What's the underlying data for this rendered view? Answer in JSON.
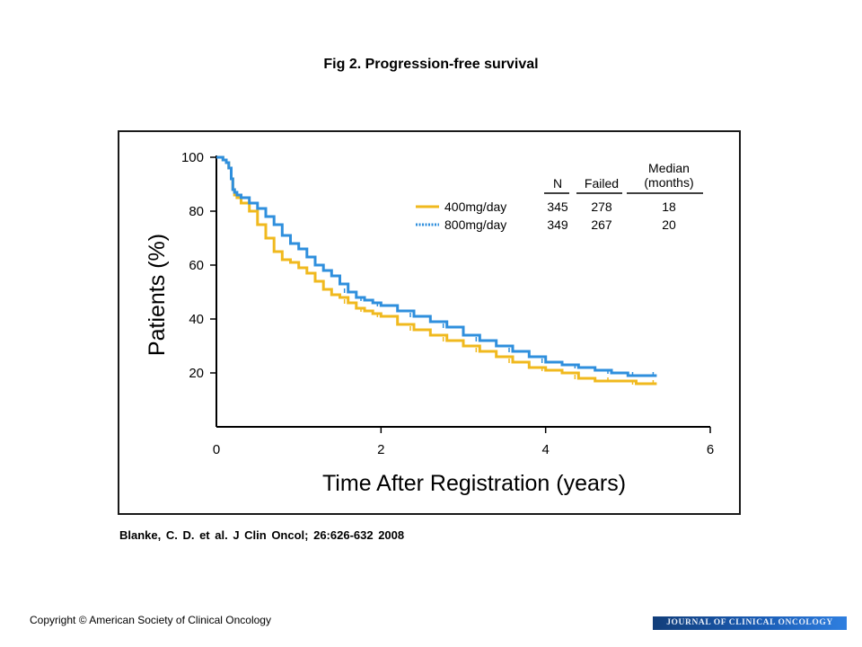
{
  "figure": {
    "title": "Fig 2. Progression-free survival",
    "citation": "Blanke,  C. D. et al. J Clin Oncol;  26:626-632  2008",
    "copyright": "Copyright © American Society of Clinical Oncology",
    "journal_banner": "JOURNAL OF CLINICAL ONCOLOGY"
  },
  "legend_table": {
    "headers": {
      "n": "N",
      "failed": "Failed",
      "median_line1": "Median",
      "median_line2": "(months)"
    },
    "rows": [
      {
        "label": "400mg/day",
        "n": "345",
        "failed": "278",
        "median": "18",
        "color": "#f0b91e",
        "line_style": "solid"
      },
      {
        "label": "800mg/day",
        "n": "349",
        "failed": "267",
        "median": "20",
        "color": "#2f8fdd",
        "line_style": "dotted"
      }
    ]
  },
  "chart_data": {
    "type": "line",
    "subtype": "kaplan-meier step",
    "xlabel": "Time After Registration (years)",
    "ylabel": "Patients (%)",
    "xlim": [
      0,
      6
    ],
    "ylim": [
      0,
      100
    ],
    "xticks": [
      "0",
      "2",
      "4",
      "6"
    ],
    "yticks": [
      "20",
      "40",
      "60",
      "80",
      "100"
    ],
    "ytick_values": [
      20,
      40,
      60,
      80,
      100
    ],
    "xtick_values": [
      0,
      2,
      4,
      6
    ],
    "grid": false,
    "series": [
      {
        "name": "400mg/day",
        "color": "#f0b91e",
        "x": [
          0,
          0.08,
          0.12,
          0.15,
          0.18,
          0.2,
          0.22,
          0.25,
          0.3,
          0.4,
          0.5,
          0.6,
          0.7,
          0.8,
          0.9,
          1.0,
          1.1,
          1.2,
          1.3,
          1.4,
          1.5,
          1.6,
          1.7,
          1.8,
          1.9,
          2.0,
          2.2,
          2.4,
          2.6,
          2.8,
          3.0,
          3.2,
          3.4,
          3.6,
          3.8,
          4.0,
          4.2,
          4.4,
          4.6,
          4.8,
          5.0,
          5.1,
          5.2,
          5.35
        ],
        "y": [
          100,
          99,
          98,
          96,
          92,
          88,
          86,
          85,
          83,
          80,
          75,
          70,
          65,
          62,
          61,
          59,
          57,
          54,
          51,
          49,
          48,
          46,
          44,
          43,
          42,
          41,
          38,
          36,
          34,
          32,
          30,
          28,
          26,
          24,
          22,
          21,
          20,
          18,
          17,
          17,
          17,
          16,
          16,
          16
        ]
      },
      {
        "name": "800mg/day",
        "color": "#2f8fdd",
        "x": [
          0,
          0.08,
          0.12,
          0.15,
          0.18,
          0.2,
          0.22,
          0.25,
          0.3,
          0.4,
          0.5,
          0.6,
          0.7,
          0.8,
          0.9,
          1.0,
          1.1,
          1.2,
          1.3,
          1.4,
          1.5,
          1.6,
          1.7,
          1.8,
          1.9,
          2.0,
          2.2,
          2.4,
          2.6,
          2.8,
          3.0,
          3.2,
          3.4,
          3.6,
          3.8,
          4.0,
          4.2,
          4.4,
          4.6,
          4.8,
          5.0,
          5.1,
          5.2,
          5.35
        ],
        "y": [
          100,
          99,
          98,
          96,
          92,
          88,
          87,
          86,
          85,
          83,
          81,
          78,
          75,
          71,
          68,
          66,
          63,
          60,
          58,
          56,
          53,
          50,
          48,
          47,
          46,
          45,
          43,
          41,
          39,
          37,
          34,
          32,
          30,
          28,
          26,
          24,
          23,
          22,
          21,
          20,
          19,
          19,
          19,
          19
        ]
      }
    ]
  }
}
